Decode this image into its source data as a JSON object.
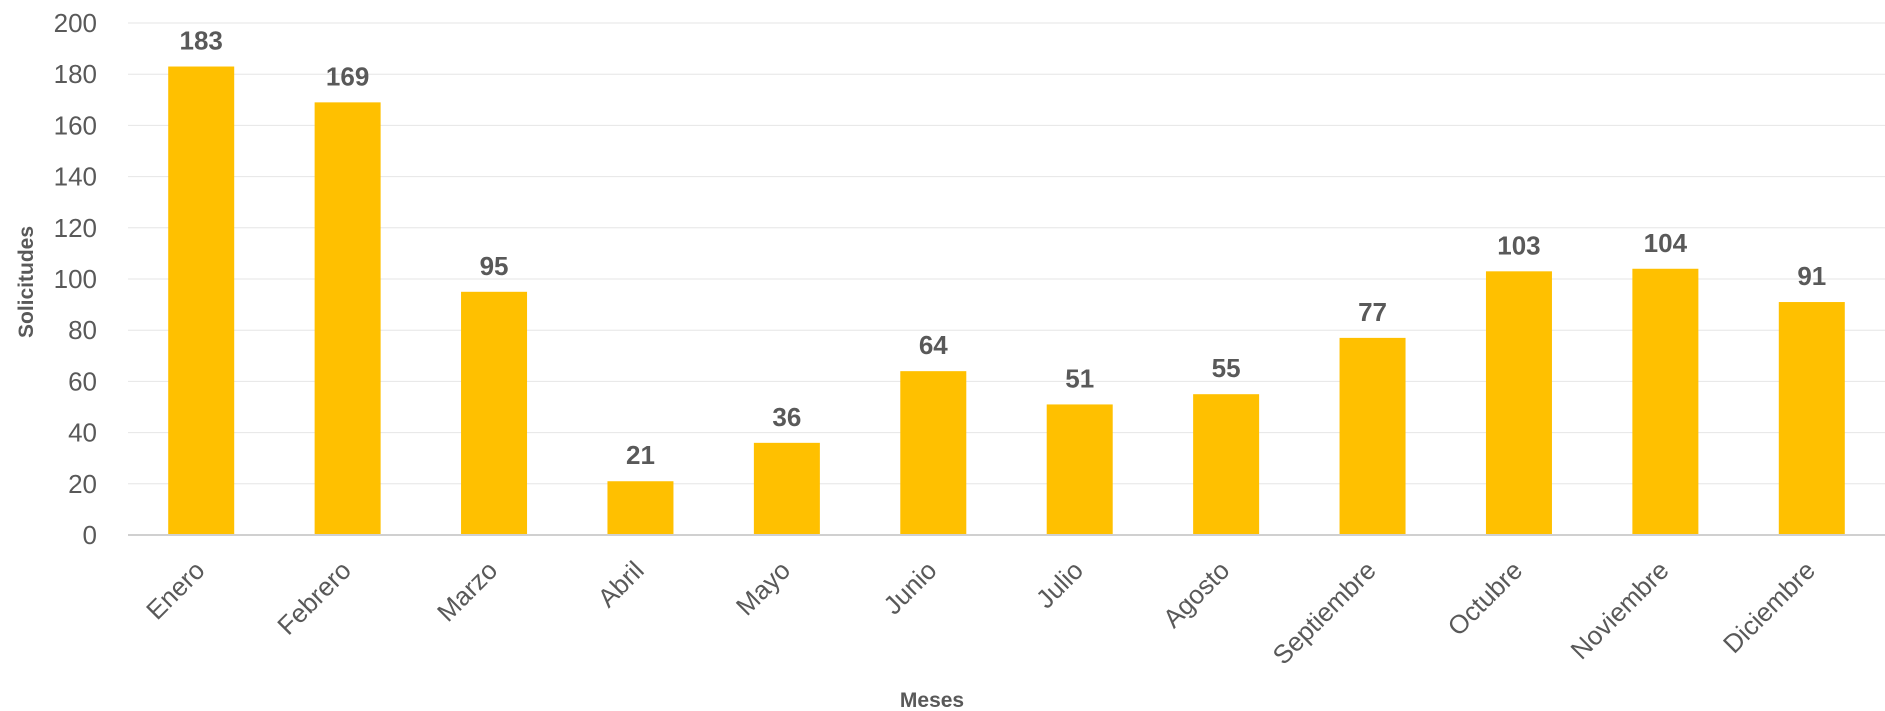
{
  "chart_data": {
    "type": "bar",
    "categories": [
      "Enero",
      "Febrero",
      "Marzo",
      "Abril",
      "Mayo",
      "Junio",
      "Julio",
      "Agosto",
      "Septiembre",
      "Octubre",
      "Noviembre",
      "Diciembre"
    ],
    "values": [
      183,
      169,
      95,
      21,
      36,
      64,
      51,
      55,
      77,
      103,
      104,
      91
    ],
    "title": "",
    "xlabel": "Meses",
    "ylabel": "Solicitudes",
    "ylim": [
      0,
      200
    ],
    "yticks": [
      0,
      20,
      40,
      60,
      80,
      100,
      120,
      140,
      160,
      180,
      200
    ],
    "bar_color": "#FFC000",
    "data_labels": true,
    "grid": true,
    "legend": "none"
  }
}
